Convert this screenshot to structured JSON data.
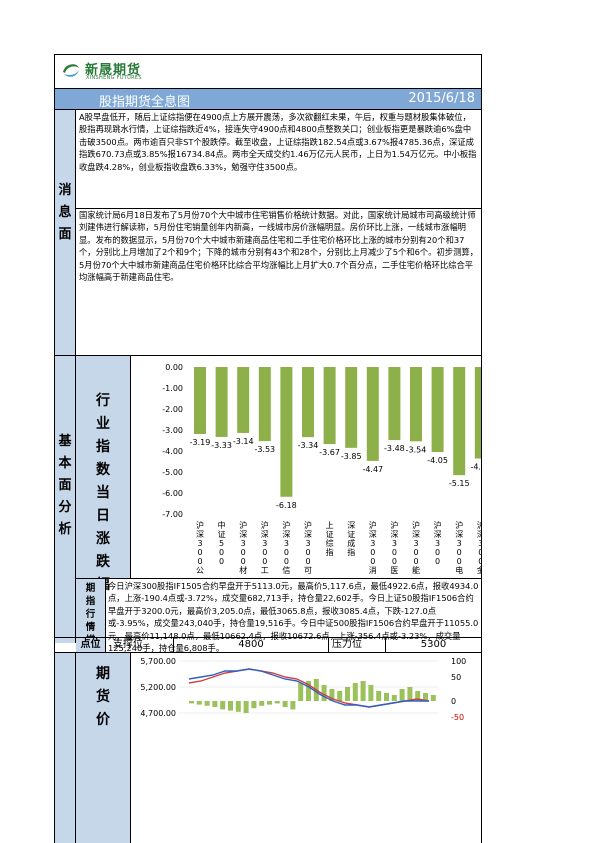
{
  "header": {
    "logo_cn": "新晟期货",
    "logo_en": "XINSHENG FUTURES",
    "title": "股指期货全息图",
    "date": "2015/6/18"
  },
  "sections": {
    "news": "消息面",
    "fundamental": "基本面分析"
  },
  "news": {
    "market": "A股早盘低开，随后上证综指便在4900点上方展开震荡，多次欲翻红未果，午后，权重与题材股集体破位，股指再现跳水行情，上证综指跌近4%，接连失守4900点和4800点整数关口；创业板指更是暴跌逾6%盘中击破3500点。两市逾百只非ST个股跌停。截至收盘，上证综指跌182.54点或3.67%报4785.36点，深证成指跌670.73点或3.85%报16734.84点。两市全天成交约1.46万亿元人民币，上日为1.54万亿元。中小板指收盘跌4.28%，创业板指收盘跌6.33%，勉强守住3500点。",
    "housing": "国家统计局6月18日发布了5月份70个大中城市住宅销售价格统计数据。对此，国家统计局城市司高级统计师刘建伟进行解读称，5月份住宅销量创年内新高，一线城市房价涨幅明显。房价环比上涨，一线城市涨幅明显。发布的数据显示，5月份70个大中城市新建商品住宅和二手住宅价格环比上涨的城市分别有20个和37个，分别比上月增加了2个和9个；下降的城市分别有43个和28个，分别比上月减少了5个和6个。初步测算，5月份70个大中城市新建商品住宅价格环比综合平均涨幅比上月扩大0.7个百分点，二手住宅价格环比综合平均涨幅高于新建商品住宅。"
  },
  "industry_chart": {
    "label": "行业指数当日涨跌幅"
  },
  "chart_data": {
    "type": "bar",
    "categories": [
      "沪深300公用",
      "中证500",
      "沪深300材料",
      "沪深300工业",
      "沪深300信息",
      "沪深300可选",
      "上证综指",
      "深证成指",
      "沪深300消费",
      "沪深300医药",
      "沪深300能源",
      "沪深300",
      "沪深300电信",
      "沪深300金融"
    ],
    "values": [
      -3.19,
      -3.33,
      -3.14,
      -3.53,
      -6.18,
      -3.34,
      -3.67,
      -3.85,
      -4.47,
      -3.48,
      -3.54,
      -4.05,
      -5.15,
      -4.36
    ],
    "value_labels": [
      "-3.19",
      "-3.33",
      "-3.14",
      "-3.53",
      "-6.18",
      "-3.34",
      "-3.67",
      "-3.85",
      "-4.47",
      "-3.48",
      "-3.54",
      "-4.05",
      "-5.15",
      "-4.36"
    ],
    "yticks": [
      "0.00",
      "-1.00",
      "-2.00",
      "-3.00",
      "-4.00",
      "-5.00",
      "-6.00",
      "-7.00"
    ],
    "ylim": [
      -7,
      0
    ],
    "bar_color": "#8db04a",
    "grid": false
  },
  "futures": {
    "label": "期指行情描述",
    "text": "今日沪深300股指IF1505合约早盘开于5113.0元，最高价5,117.6点，最低4922.6点，报收4934.0点，上涨-190.4点或-3.72%，成交量682,713手，持仓量22,602手。今日上证50股指IF1506合约早盘开于3200.0元，最高价3,205.0点，最低3065.8点，报收3085.4点，下跌-127.0点或-3.95%，成交量243,040手，持仓量19,516手。今日中证500股指IF1506合约早盘开于11055.0元，最高价11,148.0点，最低10662.4点，报收10672.6点，上涨-356.4点或-3.23%，成交量125,240手，持仓量6,808手。"
  },
  "levels": {
    "label": "点位",
    "support_label": "支撑位",
    "support": "4800",
    "resistance_label": "压力位",
    "resistance": "5300"
  },
  "price_chart": {
    "label": "期货价",
    "left_ticks": [
      "5,700.00",
      "5,200.00",
      "4,700.00"
    ],
    "right_ticks": [
      "100",
      "50",
      "0",
      "-50"
    ]
  }
}
